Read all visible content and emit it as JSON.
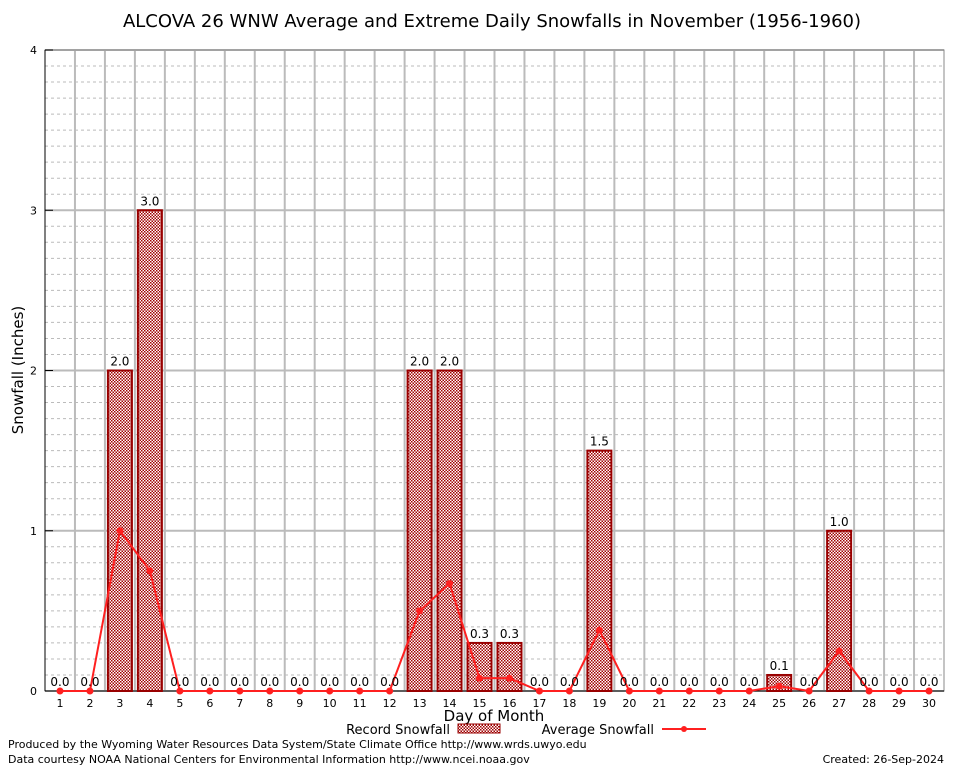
{
  "chart_data": {
    "type": "bar",
    "title": "ALCOVA 26 WNW Average and Extreme Daily Snowfalls in November (1956-1960)",
    "xlabel": "Day of Month",
    "ylabel": "Snowfall (Inches)",
    "ylim": [
      0,
      4
    ],
    "yticks": [
      "0",
      "1",
      "2",
      "3",
      "4"
    ],
    "categories": [
      "1",
      "2",
      "3",
      "4",
      "5",
      "6",
      "7",
      "8",
      "9",
      "10",
      "11",
      "12",
      "13",
      "14",
      "15",
      "16",
      "17",
      "18",
      "19",
      "20",
      "21",
      "22",
      "23",
      "24",
      "25",
      "26",
      "27",
      "28",
      "29",
      "30"
    ],
    "grid": true,
    "legend_placement": "bottom",
    "series": [
      {
        "name": "Record Snowfall",
        "type": "bar",
        "color": "#990000",
        "values": [
          0,
          0,
          2.0,
          3.0,
          0,
          0,
          0,
          0,
          0,
          0,
          0,
          0,
          2.0,
          2.0,
          0.3,
          0.3,
          0,
          0,
          1.5,
          0,
          0,
          0,
          0,
          0,
          0.1,
          0,
          1.0,
          0,
          0,
          0
        ],
        "labels": [
          "0.0",
          "0.0",
          "2.0",
          "3.0",
          "0.0",
          "0.0",
          "0.0",
          "0.0",
          "0.0",
          "0.0",
          "0.0",
          "0.0",
          "2.0",
          "2.0",
          "0.3",
          "0.3",
          "0.0",
          "0.0",
          "1.5",
          "0.0",
          "0.0",
          "0.0",
          "0.0",
          "0.0",
          "0.1",
          "0.0",
          "1.0",
          "0.0",
          "0.0",
          "0.0"
        ]
      },
      {
        "name": "Average Snowfall",
        "type": "line",
        "color": "#ff2020",
        "values": [
          0,
          0,
          1.0,
          0.75,
          0,
          0,
          0,
          0,
          0,
          0,
          0,
          0,
          0.5,
          0.67,
          0.08,
          0.08,
          0,
          0,
          0.38,
          0,
          0,
          0,
          0,
          0,
          0.03,
          0,
          0.25,
          0,
          0,
          0
        ]
      }
    ]
  },
  "footer": {
    "produced": "Produced by the Wyoming Water Resources Data System/State Climate Office http://www.wrds.uwyo.edu",
    "courtesy": "Data courtesy NOAA National Centers for Environmental Information http://www.ncei.noaa.gov",
    "created": "Created: 26-Sep-2024"
  }
}
